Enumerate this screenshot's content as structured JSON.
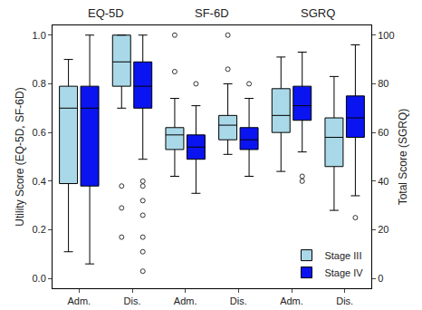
{
  "chart_data": {
    "type": "box",
    "y_label": "Utility Score (EQ-5D, SF-6D)",
    "y2_label": "Total Score (SGRQ)",
    "groups": [
      {
        "label": "EQ-5D",
        "categories": [
          "Adm.",
          "Dis."
        ],
        "axis": "y"
      },
      {
        "label": "SF-6D",
        "categories": [
          "Adm.",
          "Dis."
        ],
        "axis": "y"
      },
      {
        "label": "SGRQ",
        "categories": [
          "Adm.",
          "Dis."
        ],
        "axis": "y2"
      }
    ],
    "ylim": [
      -0.04,
      1.04
    ],
    "yticks": [
      {
        "value": 0,
        "label": "0.0"
      },
      {
        "value": 0.2,
        "label": "0.2"
      },
      {
        "value": 0.4,
        "label": "0.4"
      },
      {
        "value": 0.6,
        "label": "0.6"
      },
      {
        "value": 0.8,
        "label": "0.8"
      },
      {
        "value": 1,
        "label": "1.0"
      }
    ],
    "y2lim": [
      -4,
      104
    ],
    "y2ticks": [
      0,
      20,
      40,
      60,
      80,
      100
    ],
    "grid": false,
    "legend": "bottom right",
    "marker": "open circle",
    "series": [
      {
        "name": "Stage III",
        "color": "#a9d9e8",
        "boxes": [
          {
            "min": 0.11,
            "q1": 0.39,
            "median": 0.7,
            "q3": 0.79,
            "max": 0.9,
            "outliers": []
          },
          {
            "min": 0.7,
            "q1": 0.79,
            "median": 0.89,
            "q3": 1.0,
            "max": 1.0,
            "outliers": [
              0.38,
              0.29,
              0.17
            ]
          },
          {
            "min": 0.42,
            "q1": 0.53,
            "median": 0.59,
            "q3": 0.62,
            "max": 0.74,
            "outliers": [
              1.0,
              0.85
            ]
          },
          {
            "min": 0.51,
            "q1": 0.57,
            "median": 0.63,
            "q3": 0.67,
            "max": 0.8,
            "outliers": [
              1.0,
              0.86
            ]
          },
          {
            "min": 44,
            "q1": 60,
            "median": 67,
            "q3": 78,
            "max": 91,
            "outliers": []
          },
          {
            "min": 28,
            "q1": 46,
            "median": 58,
            "q3": 66,
            "max": 83,
            "outliers": []
          }
        ]
      },
      {
        "name": "Stage IV",
        "color": "#0a14f0",
        "boxes": [
          {
            "min": 0.06,
            "q1": 0.38,
            "median": 0.7,
            "q3": 0.79,
            "max": 1.0,
            "outliers": []
          },
          {
            "min": 0.49,
            "q1": 0.7,
            "median": 0.79,
            "q3": 0.89,
            "max": 1.0,
            "outliers": [
              0.4,
              0.38,
              0.32,
              0.26,
              0.17,
              0.11,
              0.03
            ]
          },
          {
            "min": 0.35,
            "q1": 0.49,
            "median": 0.54,
            "q3": 0.59,
            "max": 0.71,
            "outliers": [
              0.8
            ]
          },
          {
            "min": 0.42,
            "q1": 0.53,
            "median": 0.57,
            "q3": 0.62,
            "max": 0.74,
            "outliers": [
              0.8
            ]
          },
          {
            "min": 52,
            "q1": 65,
            "median": 71,
            "q3": 79,
            "max": 93,
            "outliers": [
              42,
              40
            ]
          },
          {
            "min": 34,
            "q1": 58,
            "median": 66,
            "q3": 75,
            "max": 96,
            "outliers": [
              25
            ]
          }
        ]
      }
    ]
  }
}
